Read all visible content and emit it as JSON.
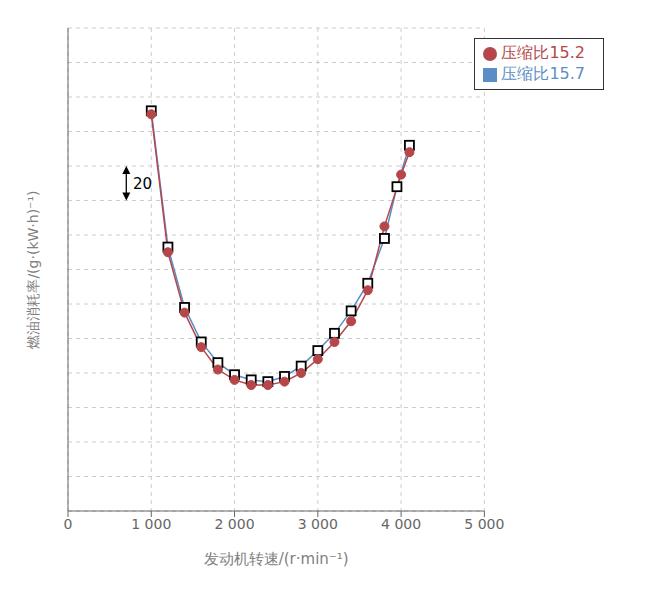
{
  "chart_data": {
    "type": "line",
    "xlabel": "发动机转速/(r·min⁻¹)",
    "ylabel": "燃油消耗率/(g·(kW·h)⁻¹)",
    "series": [
      {
        "name": "压缩比15.7",
        "color": "#5B8EC5",
        "marker": "square",
        "x": [
          1000,
          1200,
          1400,
          1600,
          1800,
          2000,
          2200,
          2400,
          2600,
          2800,
          3000,
          3200,
          3400,
          3600,
          3800,
          3950,
          4100
        ],
        "values": [
          372,
          293,
          258,
          238,
          226,
          219,
          216,
          215,
          218,
          224,
          233,
          243,
          256,
          272,
          298,
          328,
          352
        ]
      },
      {
        "name": "压缩比15.2",
        "color": "#B5474A",
        "marker": "circle",
        "x": [
          1000,
          1200,
          1400,
          1600,
          1800,
          2000,
          2200,
          2400,
          2600,
          2800,
          3000,
          3200,
          3400,
          3600,
          3800,
          4000,
          4100
        ],
        "values": [
          370,
          290,
          255,
          235,
          222,
          216,
          213,
          213,
          215,
          220,
          228,
          238,
          250,
          268,
          305,
          335,
          348
        ]
      }
    ],
    "xlim": [
      0,
      5000
    ],
    "ylim": [
      140,
      420
    ],
    "xticks": [
      0,
      {
        "value": 1000,
        "label": "1 000"
      },
      {
        "value": 2000,
        "label": "2 000"
      },
      {
        "value": 3000,
        "label": "3 000"
      },
      {
        "value": 4000,
        "label": "4 000"
      },
      {
        "value": 5000,
        "label": "5 000"
      }
    ],
    "yticks": [
      140,
      160,
      180,
      200,
      220,
      240,
      260,
      280,
      300,
      320,
      340,
      360,
      380,
      400,
      420
    ],
    "tick_labels": "x",
    "grid": true,
    "legend": "upper right",
    "annotations": [
      {
        "text": "20",
        "x": 780,
        "y": 330,
        "arrow": {
          "x": 700,
          "y_from": 320,
          "y_to": 340
        }
      }
    ]
  }
}
